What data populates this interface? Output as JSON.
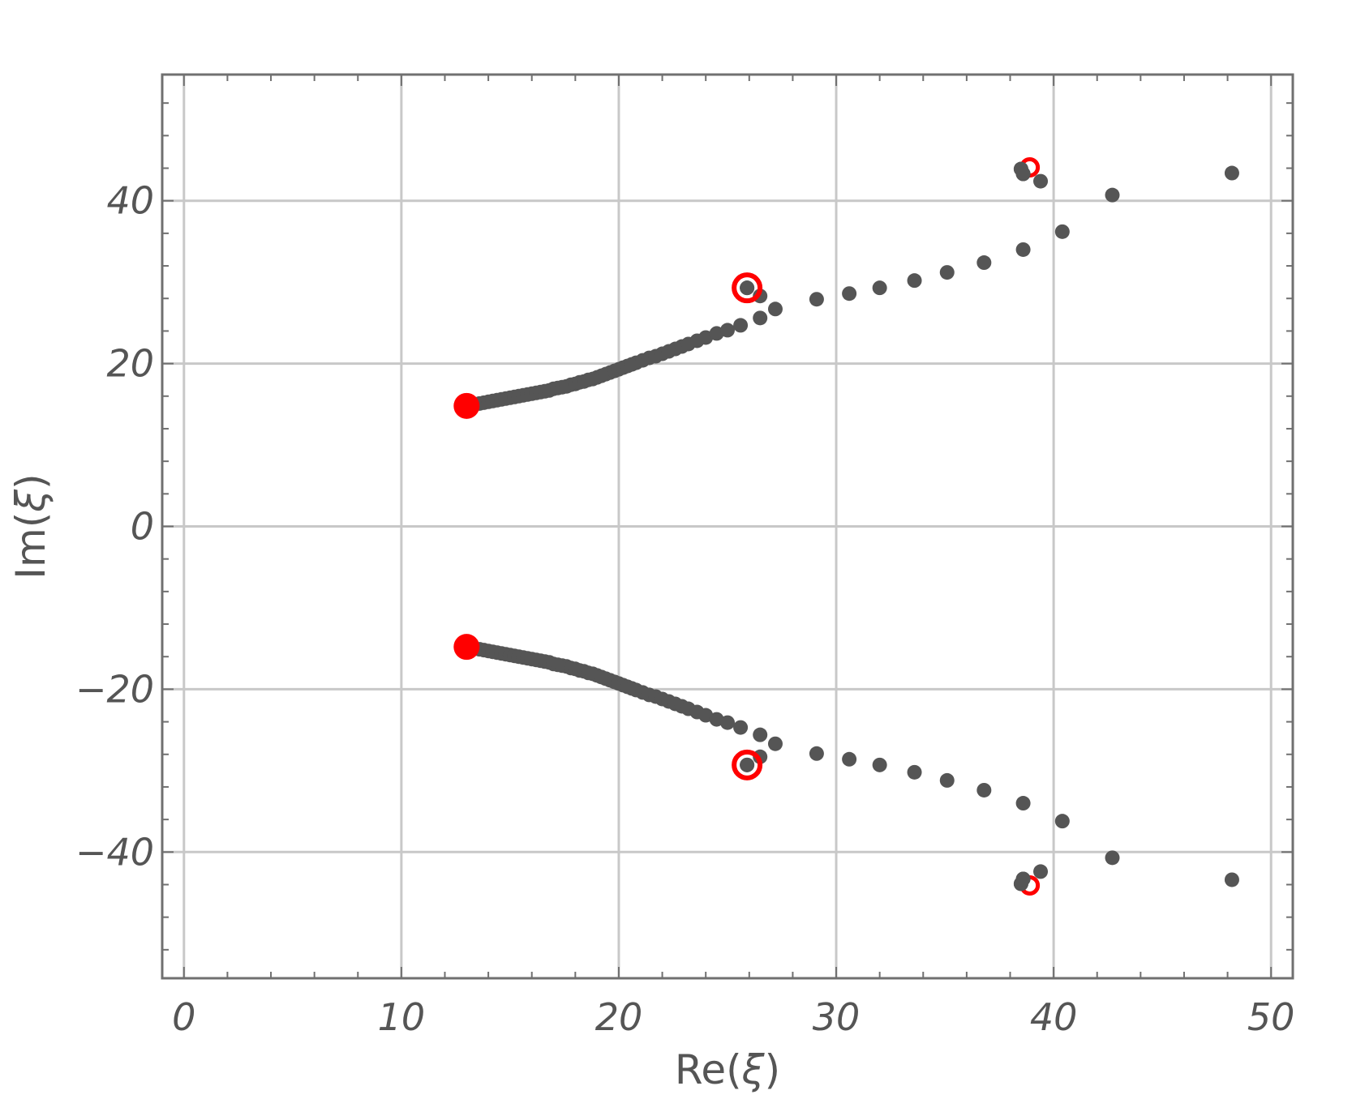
{
  "chart_data": {
    "type": "scatter",
    "title": "",
    "xlabel": "Re(ξ)",
    "ylabel": "Im(ξ)",
    "xlabel_parts": [
      "Re(",
      "ξ",
      ")"
    ],
    "ylabel_parts": [
      "Im(",
      "ξ",
      ")"
    ],
    "xlim": [
      -1,
      51
    ],
    "ylim": [
      -55.5,
      55.5
    ],
    "x_ticks": [
      0,
      10,
      20,
      30,
      40,
      50
    ],
    "y_ticks": [
      -40,
      -20,
      0,
      20,
      40
    ],
    "x_tick_labels": [
      "0",
      "10",
      "20",
      "30",
      "40",
      "50"
    ],
    "y_tick_labels": [
      "−40",
      "−20",
      "0",
      "20",
      "40"
    ],
    "x_minor_step": 2,
    "y_minor_step": 4,
    "grid": true,
    "colors": {
      "points": "#555555",
      "markers": "#ff0000",
      "grid": "#c8c8c8",
      "frame": "#707070",
      "text": "#555555"
    },
    "series": [
      {
        "marker": "filled-circle",
        "color": "#555555",
        "x_min": 13.0,
        "x_max": 48.2,
        "points_upper": [
          [
            13.0,
            14.8
          ],
          [
            13.2,
            14.9
          ],
          [
            13.4,
            15.0
          ],
          [
            13.6,
            15.1
          ],
          [
            13.8,
            15.2
          ],
          [
            14.0,
            15.3
          ],
          [
            14.2,
            15.4
          ],
          [
            14.4,
            15.5
          ],
          [
            14.6,
            15.6
          ],
          [
            14.8,
            15.7
          ],
          [
            15.0,
            15.8
          ],
          [
            15.2,
            15.9
          ],
          [
            15.4,
            16.0
          ],
          [
            15.6,
            16.1
          ],
          [
            15.8,
            16.2
          ],
          [
            16.0,
            16.3
          ],
          [
            16.2,
            16.4
          ],
          [
            16.4,
            16.5
          ],
          [
            16.6,
            16.6
          ],
          [
            16.8,
            16.7
          ],
          [
            17.0,
            16.9
          ],
          [
            17.2,
            17.0
          ],
          [
            17.4,
            17.1
          ],
          [
            17.6,
            17.2
          ],
          [
            17.8,
            17.4
          ],
          [
            18.0,
            17.5
          ],
          [
            18.2,
            17.7
          ],
          [
            18.4,
            17.8
          ],
          [
            18.6,
            18.0
          ],
          [
            18.8,
            18.1
          ],
          [
            19.0,
            18.3
          ],
          [
            19.2,
            18.5
          ],
          [
            19.4,
            18.7
          ],
          [
            19.6,
            18.9
          ],
          [
            19.8,
            19.1
          ],
          [
            20.0,
            19.3
          ],
          [
            20.2,
            19.5
          ],
          [
            20.4,
            19.7
          ],
          [
            20.6,
            19.9
          ],
          [
            20.8,
            20.1
          ],
          [
            21.1,
            20.4
          ],
          [
            21.4,
            20.7
          ],
          [
            21.7,
            20.9
          ],
          [
            22.0,
            21.2
          ],
          [
            22.3,
            21.5
          ],
          [
            22.6,
            21.8
          ],
          [
            22.9,
            22.1
          ],
          [
            23.2,
            22.4
          ],
          [
            23.6,
            22.8
          ],
          [
            24.0,
            23.2
          ],
          [
            24.5,
            23.7
          ],
          [
            25.0,
            24.1
          ],
          [
            25.6,
            24.7
          ],
          [
            26.5,
            25.6
          ],
          [
            27.2,
            26.7
          ],
          [
            25.9,
            29.3
          ],
          [
            26.5,
            28.3
          ],
          [
            29.1,
            27.9
          ],
          [
            30.6,
            28.6
          ],
          [
            32.0,
            29.3
          ],
          [
            33.6,
            30.2
          ],
          [
            35.1,
            31.2
          ],
          [
            36.8,
            32.4
          ],
          [
            38.6,
            34.0
          ],
          [
            40.4,
            36.2
          ],
          [
            42.7,
            40.7
          ],
          [
            48.2,
            43.4
          ],
          [
            38.5,
            43.9
          ],
          [
            38.6,
            43.3
          ],
          [
            39.4,
            42.4
          ]
        ]
      },
      {
        "marker": "red-filled-circle",
        "color": "#ff0000",
        "points_upper": [
          [
            13.0,
            14.8
          ]
        ]
      },
      {
        "marker": "red-open-circle",
        "color": "#ff0000",
        "points_upper": [
          [
            25.9,
            29.3
          ],
          [
            38.9,
            44.1
          ]
        ]
      }
    ],
    "symmetry": "points are mirrored about Im(ξ) = 0"
  }
}
